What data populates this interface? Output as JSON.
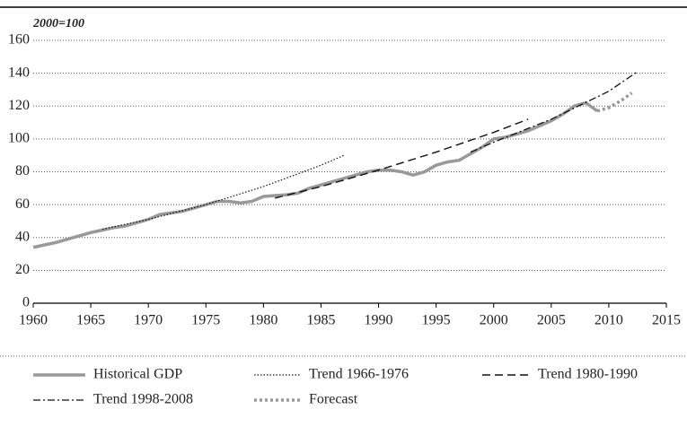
{
  "chart_data": {
    "type": "line",
    "subtitle": "2000=100",
    "xlim": [
      1960,
      2015
    ],
    "xticks": [
      1960,
      1965,
      1970,
      1975,
      1980,
      1985,
      1990,
      1995,
      2000,
      2005,
      2010,
      2015
    ],
    "ylim": [
      0,
      160
    ],
    "yticks": [
      0,
      20,
      40,
      60,
      80,
      100,
      120,
      140,
      160
    ],
    "grid": true,
    "series": [
      {
        "name": "Historical GDP",
        "color": "#999999",
        "width": 3.5,
        "dash": "none",
        "x": [
          1960,
          1961,
          1962,
          1963,
          1964,
          1965,
          1966,
          1967,
          1968,
          1969,
          1970,
          1971,
          1972,
          1973,
          1974,
          1975,
          1976,
          1977,
          1978,
          1979,
          1980,
          1981,
          1982,
          1983,
          1984,
          1985,
          1986,
          1987,
          1988,
          1989,
          1990,
          1991,
          1992,
          1993,
          1994,
          1995,
          1996,
          1997,
          1998,
          1999,
          2000,
          2001,
          2002,
          2003,
          2004,
          2005,
          2006,
          2007,
          2008,
          2009
        ],
        "values": [
          34,
          35.5,
          37,
          39,
          41,
          43,
          44.5,
          46,
          47,
          49,
          51,
          54,
          55,
          56,
          58,
          60,
          62,
          62,
          61,
          62,
          65,
          65.5,
          66,
          67,
          70,
          72,
          74,
          76,
          78,
          80,
          81,
          81,
          80,
          78,
          80,
          84,
          86,
          87,
          91,
          95,
          100,
          101,
          103,
          105,
          108,
          111,
          115,
          120,
          122,
          117
        ]
      },
      {
        "name": "Trend 1966-1976",
        "color": "#111111",
        "width": 1.2,
        "dash": "1.5,2",
        "x": [
          1966,
          1970,
          1975,
          1980,
          1985,
          1987
        ],
        "values": [
          45,
          51,
          60,
          71,
          84,
          90
        ]
      },
      {
        "name": "Trend 1980-1990",
        "color": "#111111",
        "width": 1.4,
        "dash": "9,5",
        "x": [
          1981,
          1985,
          1990,
          1995,
          2000,
          2003
        ],
        "values": [
          64,
          71,
          81,
          92,
          104,
          112
        ]
      },
      {
        "name": "Trend 1998-2008",
        "color": "#111111",
        "width": 1.3,
        "dash": "8,3,2,3",
        "x": [
          1998,
          2000,
          2005,
          2010,
          2012.5
        ],
        "values": [
          92,
          98,
          112,
          129,
          141
        ]
      },
      {
        "name": "Forecast",
        "color": "#999999",
        "width": 3.5,
        "dash": "3,3",
        "x": [
          2009,
          2010,
          2011,
          2012
        ],
        "values": [
          117,
          119,
          123,
          128
        ]
      }
    ]
  }
}
